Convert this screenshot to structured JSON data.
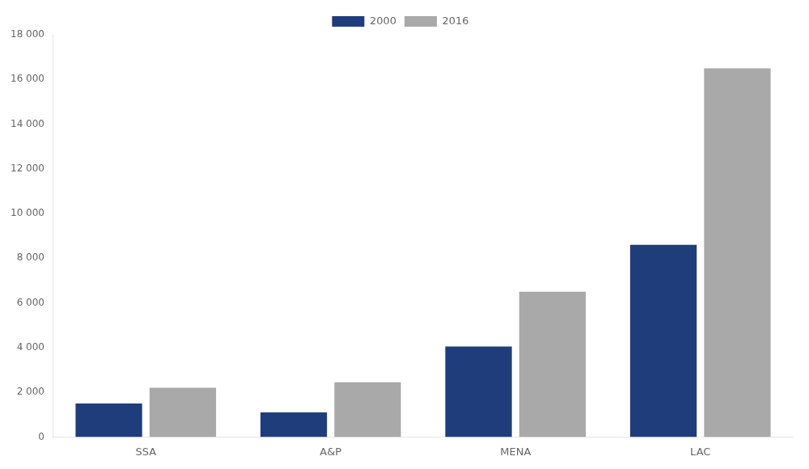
{
  "chart_data": {
    "type": "bar",
    "categories": [
      "SSA",
      "A&P",
      "MENA",
      "LAC"
    ],
    "series": [
      {
        "name": "2000",
        "color": "#1F3D7A",
        "values": [
          1500,
          1100,
          4050,
          8600
        ]
      },
      {
        "name": "2016",
        "color": "#A9A9A9",
        "values": [
          2200,
          2450,
          6500,
          16500
        ]
      }
    ],
    "ylim": [
      0,
      18000
    ],
    "yticks": [
      0,
      {
        "value": 2000,
        "label": "2 000"
      },
      {
        "value": 4000,
        "label": "4 000"
      },
      {
        "value": 6000,
        "label": "6 000"
      },
      {
        "value": 8000,
        "label": "8 000"
      },
      {
        "value": 10000,
        "label": "10 000"
      },
      {
        "value": 12000,
        "label": "12 000"
      },
      {
        "value": 14000,
        "label": "14 000"
      },
      {
        "value": 16000,
        "label": "16 000"
      },
      {
        "value": 18000,
        "label": "18 000"
      }
    ],
    "grid": false,
    "legend": "top"
  }
}
